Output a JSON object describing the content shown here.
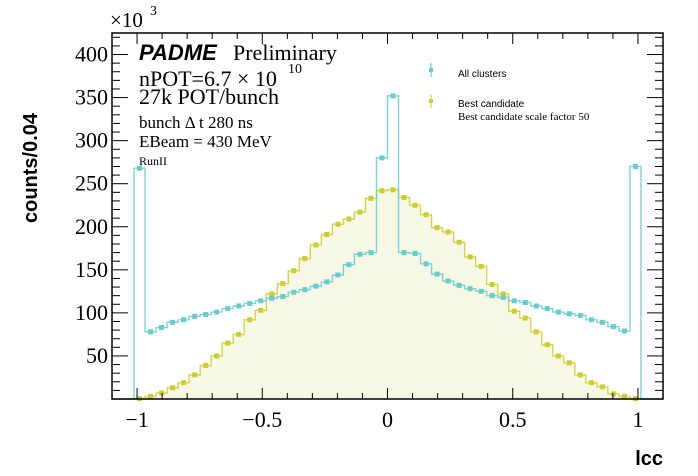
{
  "chart_data": {
    "type": "histogram",
    "title": "",
    "xlabel": "lcc",
    "ylabel": "counts/0.04",
    "y_multiplier": "×10",
    "y_multiplier_exp": "3",
    "xlim": [
      -1.1,
      1.1
    ],
    "ylim": [
      0,
      425
    ],
    "x_ticks": [
      -1,
      -0.5,
      0,
      0.5,
      1
    ],
    "x_tick_labels": [
      "−1",
      "−0.5",
      "0",
      "0.5",
      "1"
    ],
    "y_ticks": [
      50,
      100,
      150,
      200,
      250,
      300,
      350,
      400
    ],
    "y_tick_labels": [
      "50",
      "100",
      "150",
      "200",
      "250",
      "300",
      "350",
      "400"
    ],
    "bins": {
      "n": 50,
      "min": -1.1,
      "max": 1.1
    },
    "grid": false,
    "legend_position": "top-right",
    "series": [
      {
        "name": "All clusters",
        "color": "#66cccc",
        "fill": "none",
        "values": [
          0,
          0,
          268,
          78,
          83,
          89,
          92,
          96,
          98,
          101,
          105,
          108,
          111,
          114,
          117,
          119,
          124,
          127,
          131,
          136,
          144,
          156,
          168,
          170,
          280,
          352,
          170,
          169,
          157,
          145,
          137,
          132,
          128,
          125,
          120,
          118,
          114,
          112,
          108,
          105,
          101,
          99,
          97,
          92,
          89,
          84,
          79,
          270,
          0,
          0
        ]
      },
      {
        "name": "Best candidate",
        "color": "#cccc33",
        "fill": "#f8f8e6",
        "values": [
          0,
          0,
          0.5,
          3,
          7,
          13,
          19,
          28,
          39,
          50,
          65,
          75,
          92,
          103,
          122,
          134,
          149,
          163,
          179,
          191,
          203,
          209,
          217,
          233,
          242,
          243,
          234,
          225,
          214,
          199,
          194,
          182,
          165,
          154,
          133,
          122,
          102,
          94,
          78,
          63,
          50,
          42,
          28,
          19,
          14,
          6,
          3,
          0.5,
          0,
          0
        ]
      }
    ],
    "legend": {
      "entries": [
        "All clusters",
        "Best candidate"
      ],
      "extra_line": "Best candidate scale factor 50"
    },
    "annotations": {
      "experiment": "PADME",
      "status": "Preliminary",
      "npot_prefix": "nPOT=6.7 × 10",
      "npot_exp": "10",
      "pot_bunch": "27k POT/bunch",
      "bunch_dt": "bunch Δ t 280 ns",
      "ebeam": "EBeam = 430 MeV",
      "run": "RunII"
    }
  }
}
